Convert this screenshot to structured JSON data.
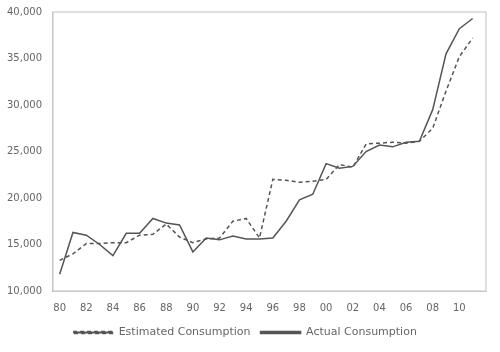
{
  "chart_data": {
    "type": "line",
    "x": [
      80,
      81,
      82,
      83,
      84,
      85,
      86,
      87,
      88,
      89,
      90,
      91,
      92,
      93,
      94,
      95,
      96,
      97,
      98,
      99,
      100,
      101,
      102,
      103,
      104,
      105,
      106,
      107,
      108,
      109,
      110,
      111
    ],
    "series": [
      {
        "name": "Estimated Consumption",
        "color": "#555555",
        "line_style": "dashed",
        "values": [
          13300,
          14000,
          15100,
          15100,
          15200,
          15200,
          16000,
          16100,
          17200,
          15800,
          15200,
          15600,
          15700,
          17500,
          17800,
          15700,
          22000,
          21900,
          21700,
          21800,
          22000,
          23600,
          23300,
          25800,
          25900,
          26000,
          25900,
          26100,
          27500,
          31500,
          35200,
          37200
        ]
      },
      {
        "name": "Actual Consumption",
        "color": "#555555",
        "line_style": "solid",
        "values": [
          11800,
          16300,
          16000,
          15000,
          13800,
          16200,
          16200,
          17800,
          17300,
          17100,
          14200,
          15700,
          15500,
          15900,
          15600,
          15600,
          15700,
          17500,
          19800,
          20400,
          23700,
          23200,
          23400,
          25000,
          25700,
          25500,
          26000,
          26100,
          29500,
          35500,
          38200,
          39300
        ]
      }
    ],
    "xlim": [
      79.5,
      112
    ],
    "xticks": [
      80,
      82,
      84,
      86,
      88,
      90,
      92,
      94,
      96,
      98,
      {
        "value": 100,
        "label": "00"
      },
      {
        "value": 102,
        "label": "02"
      },
      {
        "value": 104,
        "label": "04"
      },
      {
        "value": 106,
        "label": "06"
      },
      {
        "value": 108,
        "label": "08"
      },
      {
        "value": 110,
        "label": "10"
      }
    ],
    "ylim": [
      10000,
      40000
    ],
    "yticks": [
      {
        "value": 10000,
        "label": "10,000"
      },
      {
        "value": 15000,
        "label": "15,000"
      },
      {
        "value": 20000,
        "label": "20,000"
      },
      {
        "value": 25000,
        "label": "25,000"
      },
      {
        "value": 30000,
        "label": "30,000"
      },
      {
        "value": 35000,
        "label": "35,000"
      },
      {
        "value": 40000,
        "label": "40,000"
      }
    ],
    "grid": false,
    "legend": "bottom"
  }
}
